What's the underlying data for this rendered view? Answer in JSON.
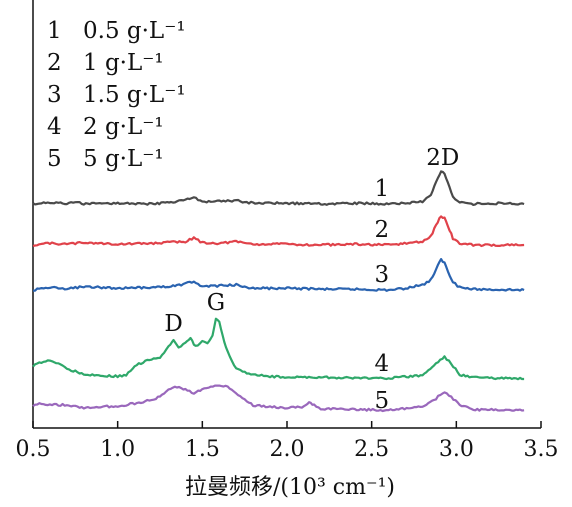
{
  "chart_data": {
    "type": "line",
    "xlabel": "拉曼频移/(10³ cm⁻¹)",
    "xlim": [
      0.5,
      3.5
    ],
    "xticks": [
      {
        "value": 0.5,
        "label": "0.5"
      },
      {
        "value": 1.0,
        "label": "1.0"
      },
      {
        "value": 1.5,
        "label": "1.5"
      },
      {
        "value": 2.0,
        "label": "2.0"
      },
      {
        "value": 2.5,
        "label": "2.5"
      },
      {
        "value": 3.0,
        "label": "3.0"
      },
      {
        "value": 3.5,
        "label": "3.5"
      }
    ],
    "legend": [
      {
        "num": "1",
        "text": "0.5 g·L⁻¹"
      },
      {
        "num": "2",
        "text": "1 g·L⁻¹"
      },
      {
        "num": "3",
        "text": "1.5 g·L⁻¹"
      },
      {
        "num": "4",
        "text": "2 g·L⁻¹"
      },
      {
        "num": "5",
        "text": "5 g·L⁻¹"
      }
    ],
    "legend_position": "top-left",
    "grid": false,
    "peak_labels": [
      {
        "text": "D",
        "x": 1.33
      },
      {
        "text": "G",
        "x": 1.58
      },
      {
        "text": "2D",
        "x": 2.92
      }
    ],
    "series": [
      {
        "name": "1",
        "color": "#4a4a4a",
        "label_x": 2.3,
        "x": [
          0.5,
          0.6,
          0.7,
          0.75,
          0.8,
          1.0,
          1.2,
          1.35,
          1.45,
          1.5,
          1.6,
          1.7,
          1.8,
          2.0,
          2.2,
          2.4,
          2.6,
          2.7,
          2.8,
          2.85,
          2.88,
          2.91,
          2.93,
          2.95,
          2.98,
          3.02,
          3.1,
          3.2,
          3.4
        ],
        "y": [
          0,
          0.2,
          0,
          0.3,
          0,
          0.1,
          0,
          0.3,
          0.8,
          0.2,
          0.3,
          0.4,
          0.1,
          0.1,
          0,
          0.1,
          0,
          0.1,
          0.3,
          1,
          2.5,
          3.9,
          3.6,
          2.4,
          0.9,
          0.2,
          0,
          0.1,
          0
        ]
      },
      {
        "name": "2",
        "color": "#e0424a",
        "label_x": 2.3,
        "x": [
          0.5,
          0.6,
          0.7,
          0.8,
          1.0,
          1.2,
          1.4,
          1.45,
          1.5,
          1.6,
          1.7,
          1.8,
          2.0,
          2.2,
          2.4,
          2.6,
          2.8,
          2.85,
          2.88,
          2.91,
          2.93,
          2.95,
          2.98,
          3.02,
          3.1,
          3.4
        ],
        "y": [
          0,
          0.2,
          0.1,
          0.3,
          0.1,
          0.2,
          0.4,
          0.8,
          0.3,
          0.2,
          0.4,
          0.1,
          0.1,
          0,
          0.1,
          0,
          0.4,
          1,
          2.4,
          3.4,
          3.2,
          2.2,
          0.8,
          0.2,
          0,
          0
        ]
      },
      {
        "name": "3",
        "color": "#2a63b0",
        "label_x": 2.3,
        "x": [
          0.5,
          0.6,
          0.7,
          0.8,
          1.0,
          1.2,
          1.35,
          1.45,
          1.5,
          1.6,
          1.7,
          1.8,
          2.0,
          2.2,
          2.4,
          2.6,
          2.7,
          2.8,
          2.85,
          2.88,
          2.91,
          2.93,
          2.95,
          2.98,
          3.02,
          3.1,
          3.4
        ],
        "y": [
          0,
          0.3,
          0.1,
          0.4,
          0.2,
          0.3,
          0.5,
          1,
          0.4,
          0.5,
          0.6,
          0.2,
          0.2,
          0.1,
          0.1,
          0,
          0.2,
          0.6,
          1.2,
          2.4,
          3.6,
          3.2,
          2.2,
          0.9,
          0.3,
          0.1,
          0
        ]
      },
      {
        "name": "4",
        "color": "#2fa86a",
        "label_x": 2.3,
        "x": [
          0.5,
          0.55,
          0.6,
          0.65,
          0.7,
          0.8,
          0.9,
          1.0,
          1.05,
          1.1,
          1.15,
          1.2,
          1.25,
          1.3,
          1.33,
          1.36,
          1.4,
          1.43,
          1.46,
          1.5,
          1.53,
          1.56,
          1.58,
          1.6,
          1.62,
          1.65,
          1.7,
          1.8,
          1.9,
          2.0,
          2.2,
          2.4,
          2.6,
          2.8,
          2.88,
          2.93,
          2.97,
          3.02,
          3.1,
          3.4
        ],
        "y": [
          1.5,
          2,
          2.2,
          1.8,
          1.2,
          0.6,
          0.4,
          0.3,
          0.5,
          1.5,
          2,
          2.3,
          2.6,
          3.8,
          4.6,
          3.6,
          4.2,
          4.8,
          3.8,
          4.5,
          4.2,
          5,
          7.2,
          6.8,
          5,
          3.2,
          1.2,
          0.5,
          0.3,
          0.2,
          0.2,
          0.1,
          0.1,
          0.4,
          1.8,
          2.6,
          1.8,
          0.5,
          0.2,
          0
        ]
      },
      {
        "name": "5",
        "color": "#9a68bc",
        "label_x": 2.3,
        "x": [
          0.5,
          0.55,
          0.6,
          0.7,
          0.8,
          0.9,
          1.0,
          1.1,
          1.2,
          1.25,
          1.3,
          1.35,
          1.4,
          1.45,
          1.5,
          1.55,
          1.6,
          1.65,
          1.7,
          1.8,
          1.9,
          2.0,
          2.1,
          2.13,
          2.16,
          2.2,
          2.4,
          2.6,
          2.8,
          2.88,
          2.93,
          2.97,
          3.02,
          3.1,
          3.4
        ],
        "y": [
          0.7,
          1,
          0.9,
          0.8,
          0.5,
          0.6,
          0.7,
          1,
          1.4,
          1.8,
          2.6,
          3,
          2.6,
          2.2,
          2.6,
          3,
          3.2,
          3,
          2.2,
          0.8,
          0.6,
          0.5,
          0.6,
          1.2,
          0.8,
          0.4,
          0.3,
          0.2,
          0.6,
          1.6,
          2.4,
          1.8,
          0.8,
          0.3,
          0.2
        ]
      }
    ]
  }
}
